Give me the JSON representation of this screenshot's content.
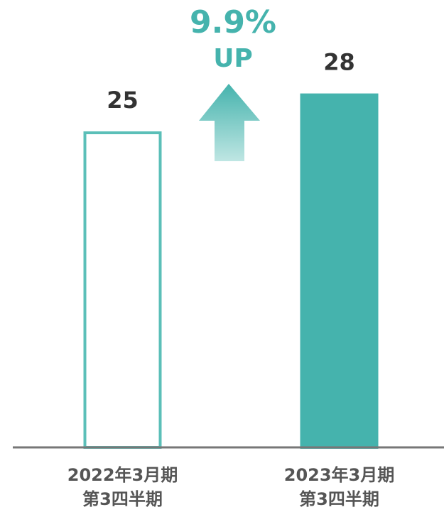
{
  "chart_data": {
    "type": "bar",
    "categories": [
      "2022年3月期\n第3四半期",
      "2023年3月期\n第3四半期"
    ],
    "values": [
      25,
      28
    ],
    "color": "#45b3ad",
    "bar_styles": [
      "outline",
      "filled"
    ],
    "ylim": [
      0,
      35
    ],
    "annotations": [
      "9.9%",
      "UP"
    ]
  }
}
